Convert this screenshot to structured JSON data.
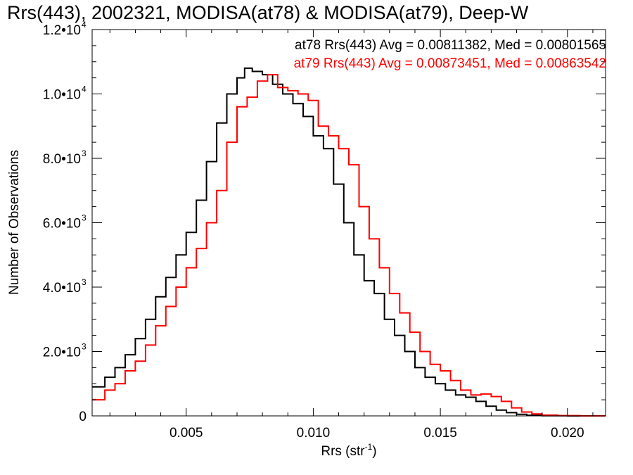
{
  "chart_data": {
    "type": "line",
    "title": "Rrs(443), 2002321, MODISA(at78) & MODISA(at79), Deep-W",
    "xlabel": "Rrs (str",
    "xlabel_exp": "-1",
    "xlabel_end": ")",
    "ylabel": "Number of Observations",
    "xlim": [
      0.0013,
      0.0215
    ],
    "ylim": [
      0,
      12000
    ],
    "x_ticks": [
      0.005,
      0.01,
      0.015,
      0.02
    ],
    "x_tick_labels": [
      "0.005",
      "0.010",
      "0.015",
      "0.020"
    ],
    "y_ticks": [
      {
        "value": 0,
        "mant": "0",
        "exp": ""
      },
      {
        "value": 2000,
        "mant": "2.0•10",
        "exp": "3"
      },
      {
        "value": 4000,
        "mant": "4.0•10",
        "exp": "3"
      },
      {
        "value": 6000,
        "mant": "6.0•10",
        "exp": "3"
      },
      {
        "value": 8000,
        "mant": "8.0•10",
        "exp": "3"
      },
      {
        "value": 10000,
        "mant": "1.0•10",
        "exp": "4"
      },
      {
        "value": 12000,
        "mant": "1.2•10",
        "exp": "4"
      }
    ],
    "grid": false,
    "legend_position": "top-right",
    "series": [
      {
        "name": "at78 Rrs(443) Avg = 0.00811382, Med = 0.00801565",
        "color": "#000000",
        "points": [
          [
            0.0013,
            900
          ],
          [
            0.0018,
            1200
          ],
          [
            0.0022,
            1500
          ],
          [
            0.0026,
            1900
          ],
          [
            0.003,
            2400
          ],
          [
            0.0034,
            3000
          ],
          [
            0.0038,
            3700
          ],
          [
            0.0042,
            4300
          ],
          [
            0.0046,
            5000
          ],
          [
            0.005,
            5700
          ],
          [
            0.0054,
            6700
          ],
          [
            0.0058,
            7900
          ],
          [
            0.0062,
            9100
          ],
          [
            0.0066,
            10000
          ],
          [
            0.007,
            10500
          ],
          [
            0.0073,
            10800
          ],
          [
            0.0076,
            10700
          ],
          [
            0.008,
            10600
          ],
          [
            0.0084,
            10300
          ],
          [
            0.0088,
            10000
          ],
          [
            0.0092,
            9700
          ],
          [
            0.0096,
            9300
          ],
          [
            0.01,
            8700
          ],
          [
            0.0104,
            8300
          ],
          [
            0.0108,
            7200
          ],
          [
            0.0112,
            6000
          ],
          [
            0.0116,
            5000
          ],
          [
            0.012,
            4200
          ],
          [
            0.0124,
            3800
          ],
          [
            0.0128,
            3000
          ],
          [
            0.0132,
            2500
          ],
          [
            0.0136,
            2000
          ],
          [
            0.014,
            1500
          ],
          [
            0.0144,
            1200
          ],
          [
            0.0148,
            1000
          ],
          [
            0.0152,
            800
          ],
          [
            0.0156,
            650
          ],
          [
            0.016,
            580
          ],
          [
            0.0164,
            450
          ],
          [
            0.0168,
            300
          ],
          [
            0.0172,
            180
          ],
          [
            0.0176,
            100
          ],
          [
            0.018,
            50
          ],
          [
            0.0184,
            20
          ],
          [
            0.019,
            5
          ],
          [
            0.02,
            0
          ],
          [
            0.0215,
            0
          ]
        ]
      },
      {
        "name": "at79 Rrs(443) Avg = 0.00873451, Med = 0.00863542",
        "color": "#ff0000",
        "points": [
          [
            0.0013,
            500
          ],
          [
            0.0018,
            800
          ],
          [
            0.0022,
            1000
          ],
          [
            0.0026,
            1400
          ],
          [
            0.003,
            1700
          ],
          [
            0.0034,
            2200
          ],
          [
            0.0038,
            2800
          ],
          [
            0.0042,
            3400
          ],
          [
            0.0046,
            4000
          ],
          [
            0.005,
            4600
          ],
          [
            0.0054,
            5200
          ],
          [
            0.0058,
            6000
          ],
          [
            0.0062,
            7000
          ],
          [
            0.0066,
            8500
          ],
          [
            0.007,
            9600
          ],
          [
            0.0074,
            9900
          ],
          [
            0.0078,
            10400
          ],
          [
            0.0082,
            10600
          ],
          [
            0.0086,
            10200
          ],
          [
            0.009,
            10100
          ],
          [
            0.0094,
            10000
          ],
          [
            0.0098,
            9800
          ],
          [
            0.0102,
            9000
          ],
          [
            0.0106,
            8700
          ],
          [
            0.011,
            8300
          ],
          [
            0.0114,
            7800
          ],
          [
            0.0118,
            6500
          ],
          [
            0.0122,
            5500
          ],
          [
            0.0126,
            4600
          ],
          [
            0.013,
            3800
          ],
          [
            0.0134,
            3200
          ],
          [
            0.0138,
            2600
          ],
          [
            0.0142,
            2000
          ],
          [
            0.0146,
            1600
          ],
          [
            0.015,
            1400
          ],
          [
            0.0154,
            1100
          ],
          [
            0.0158,
            800
          ],
          [
            0.0162,
            650
          ],
          [
            0.0166,
            680
          ],
          [
            0.017,
            600
          ],
          [
            0.0174,
            450
          ],
          [
            0.0178,
            250
          ],
          [
            0.0182,
            120
          ],
          [
            0.0186,
            60
          ],
          [
            0.019,
            25
          ],
          [
            0.0196,
            8
          ],
          [
            0.0205,
            0
          ],
          [
            0.0215,
            0
          ]
        ]
      }
    ]
  }
}
